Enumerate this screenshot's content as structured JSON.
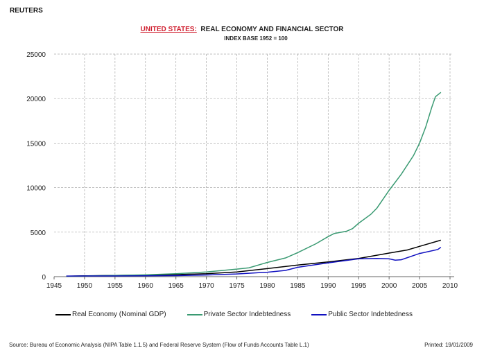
{
  "brand": "REUTERS",
  "chart_data": {
    "type": "line",
    "title_country": "UNITED STATES:",
    "title": "REAL ECONOMY AND FINANCIAL SECTOR",
    "subtitle": "INDEX BASE 1952 = 100",
    "xlim": [
      1945,
      2010
    ],
    "ylim": [
      0,
      25000
    ],
    "xticks": [
      "1945",
      "1950",
      "1955",
      "1960",
      "1965",
      "1970",
      "1975",
      "1980",
      "1985",
      "1990",
      "1995",
      "2000",
      "2005",
      "2010"
    ],
    "yticks": [
      "0",
      "5000",
      "10000",
      "15000",
      "20000",
      "25000"
    ],
    "grid": true,
    "legend": "bottom",
    "series": [
      {
        "name": "Real Economy (Nominal GDP)",
        "color": "#000000",
        "x": [
          1947,
          1950,
          1955,
          1960,
          1965,
          1970,
          1975,
          1980,
          1985,
          1990,
          1995,
          2000,
          2003,
          2005,
          2008.5
        ],
        "y": [
          50,
          90,
          130,
          170,
          230,
          330,
          520,
          900,
          1300,
          1650,
          2050,
          2650,
          3000,
          3400,
          4100
        ]
      },
      {
        "name": "Private Sector Indebtedness",
        "color": "#3a9a72",
        "x": [
          1947,
          1950,
          1955,
          1960,
          1965,
          1970,
          1975,
          1977,
          1980,
          1983,
          1985,
          1988,
          1990,
          1991,
          1993,
          1994,
          1995,
          1997,
          1998,
          2000,
          2002,
          2004,
          2005,
          2006,
          2007,
          2007.6,
          2008.5
        ],
        "y": [
          50,
          80,
          130,
          200,
          330,
          520,
          850,
          1000,
          1600,
          2100,
          2700,
          3700,
          4500,
          4850,
          5100,
          5400,
          6000,
          7000,
          7700,
          9700,
          11500,
          13600,
          15000,
          16800,
          19000,
          20200,
          20700
        ]
      },
      {
        "name": "Public Sector Indebtedness",
        "color": "#1010c0",
        "x": [
          1947,
          1950,
          1955,
          1960,
          1965,
          1970,
          1975,
          1980,
          1983,
          1985,
          1990,
          1995,
          1998,
          2000,
          2001,
          2002,
          2005,
          2008,
          2008.5
        ],
        "y": [
          70,
          80,
          80,
          100,
          120,
          190,
          300,
          500,
          700,
          1050,
          1550,
          2000,
          2050,
          2000,
          1850,
          1900,
          2600,
          3050,
          3300
        ]
      }
    ]
  },
  "footer": {
    "source": "Source:  Bureau of Economic Analysis (NIPA Table 1.1.5) and Federal Reserve System (Flow of Funds Accounts Table L.1)",
    "printed": "Printed:  19/01/2009"
  }
}
